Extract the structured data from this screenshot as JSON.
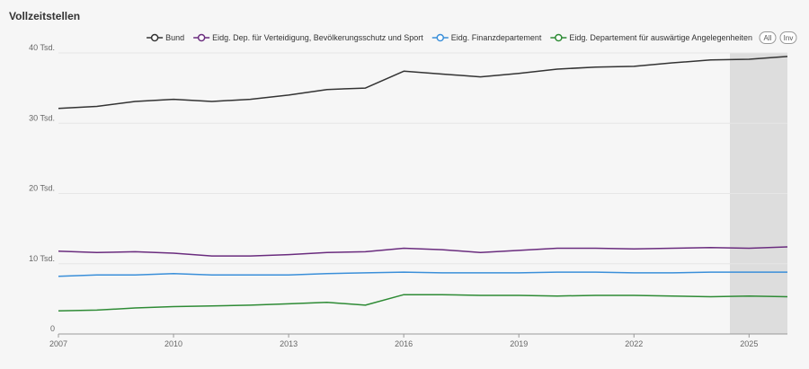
{
  "page": {
    "title": "Vollzeitstellen"
  },
  "legend_buttons": {
    "all": "All",
    "inv": "Inv"
  },
  "colors": {
    "grid": "#e6e6e6",
    "axis": "#999999",
    "highlight": "#dddddd"
  },
  "chart_data": {
    "type": "line",
    "title": "Vollzeitstellen",
    "xlabel": "",
    "ylabel": "",
    "xlim": [
      2007,
      2026
    ],
    "ylim": [
      0,
      40000
    ],
    "x_ticks": [
      2007,
      2010,
      2013,
      2016,
      2019,
      2022,
      2025
    ],
    "y_ticks": [
      {
        "value": 0,
        "label": "0"
      },
      {
        "value": 10000,
        "label": "10 Tsd."
      },
      {
        "value": 20000,
        "label": "20 Tsd."
      },
      {
        "value": 30000,
        "label": "30 Tsd."
      },
      {
        "value": 40000,
        "label": "40 Tsd."
      }
    ],
    "highlight_range": [
      2024.5,
      2026
    ],
    "legend_position": "top-right",
    "x": [
      2007,
      2008,
      2009,
      2010,
      2011,
      2012,
      2013,
      2014,
      2015,
      2016,
      2017,
      2018,
      2019,
      2020,
      2021,
      2022,
      2023,
      2024,
      2025,
      2026
    ],
    "series": [
      {
        "name": "Bund",
        "color": "#333333",
        "values": [
          32100,
          32400,
          33100,
          33400,
          33100,
          33400,
          34000,
          34800,
          35000,
          37400,
          37000,
          36600,
          37100,
          37700,
          38000,
          38100,
          38600,
          39000,
          39100,
          39500
        ]
      },
      {
        "name": "Eidg. Dep. für Verteidigung, Bevölkerungsschutz und Sport",
        "color": "#6a2c7e",
        "values": [
          11800,
          11600,
          11700,
          11500,
          11100,
          11100,
          11300,
          11600,
          11700,
          12200,
          12000,
          11600,
          11900,
          12200,
          12200,
          12100,
          12200,
          12300,
          12200,
          12400
        ]
      },
      {
        "name": "Eidg. Finanzdepartement",
        "color": "#3a8fd9",
        "values": [
          8200,
          8400,
          8400,
          8600,
          8400,
          8400,
          8400,
          8600,
          8700,
          8800,
          8700,
          8700,
          8700,
          8800,
          8800,
          8700,
          8700,
          8800,
          8800,
          8800
        ]
      },
      {
        "name": "Eidg. Departement für auswärtige Angelegenheiten",
        "color": "#2e8b35",
        "values": [
          3300,
          3400,
          3700,
          3900,
          4000,
          4100,
          4300,
          4500,
          4100,
          5600,
          5600,
          5500,
          5500,
          5400,
          5500,
          5500,
          5400,
          5300,
          5400,
          5300
        ]
      }
    ]
  }
}
